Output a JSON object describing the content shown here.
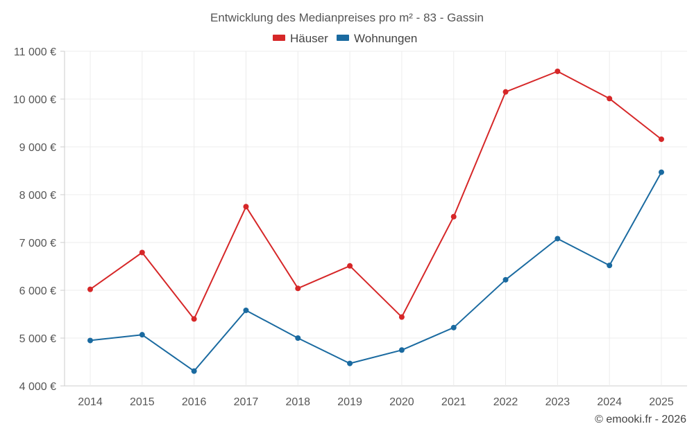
{
  "chart_data": {
    "type": "line",
    "title": "Entwicklung des Medianpreises pro m² - 83 - Gassin",
    "categories": [
      "2014",
      "2015",
      "2016",
      "2017",
      "2018",
      "2019",
      "2020",
      "2021",
      "2022",
      "2023",
      "2024",
      "2025"
    ],
    "series": [
      {
        "name": "Häuser",
        "color": "#d62728",
        "values": [
          6020,
          6790,
          5400,
          7750,
          6040,
          6510,
          5440,
          7540,
          10150,
          10580,
          10010,
          9160
        ]
      },
      {
        "name": "Wohnungen",
        "color": "#1a6aa0",
        "values": [
          4950,
          5070,
          4310,
          5580,
          5000,
          4470,
          4750,
          5220,
          6220,
          7080,
          6520,
          8470
        ]
      }
    ],
    "ylim": [
      4000,
      11000
    ],
    "yticks": [
      4000,
      5000,
      6000,
      7000,
      8000,
      9000,
      10000,
      11000
    ],
    "ytick_labels": [
      "4 000 €",
      "5 000 €",
      "6 000 €",
      "7 000 €",
      "8 000 €",
      "9 000 €",
      "10 000 €",
      "11 000 €"
    ],
    "xlabel": "",
    "ylabel": "",
    "grid": true,
    "legend_position": "top-center"
  },
  "credit": "© emooki.fr - 2026"
}
